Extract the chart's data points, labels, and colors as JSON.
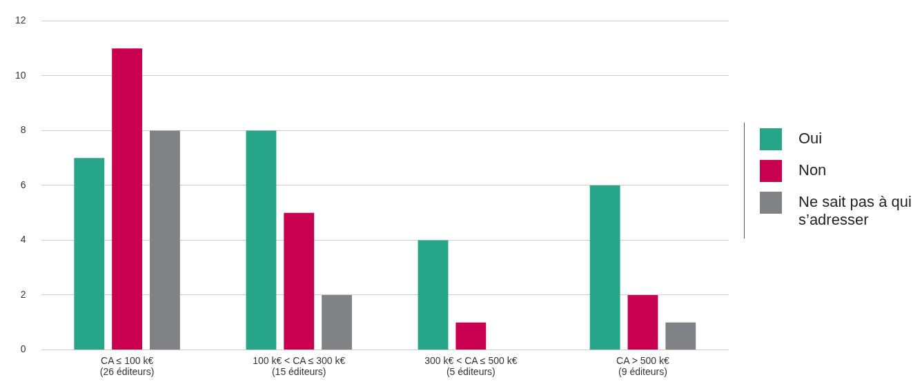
{
  "chart_data": {
    "type": "bar",
    "categories": [
      "CA ≤ 100 k€\n(26 éditeurs)",
      "100 k€ < CA ≤ 300 k€\n(15 éditeurs)",
      "300 k€ < CA ≤ 500 k€\n(5 éditeurs)",
      "CA > 500 k€\n(9 éditeurs)"
    ],
    "series": [
      {
        "name": "Oui",
        "color": "#26a589",
        "values": [
          7,
          8,
          4,
          6
        ]
      },
      {
        "name": "Non",
        "color": "#c8004f",
        "values": [
          11,
          5,
          1,
          2
        ]
      },
      {
        "name": "Ne sait pas à qui s’adresser",
        "color": "#808386",
        "values": [
          8,
          2,
          0,
          1
        ]
      }
    ],
    "ylim": [
      0,
      12
    ],
    "yticks": [
      0,
      2,
      4,
      6,
      8,
      10,
      12
    ],
    "grid": "y",
    "legend": "right"
  }
}
